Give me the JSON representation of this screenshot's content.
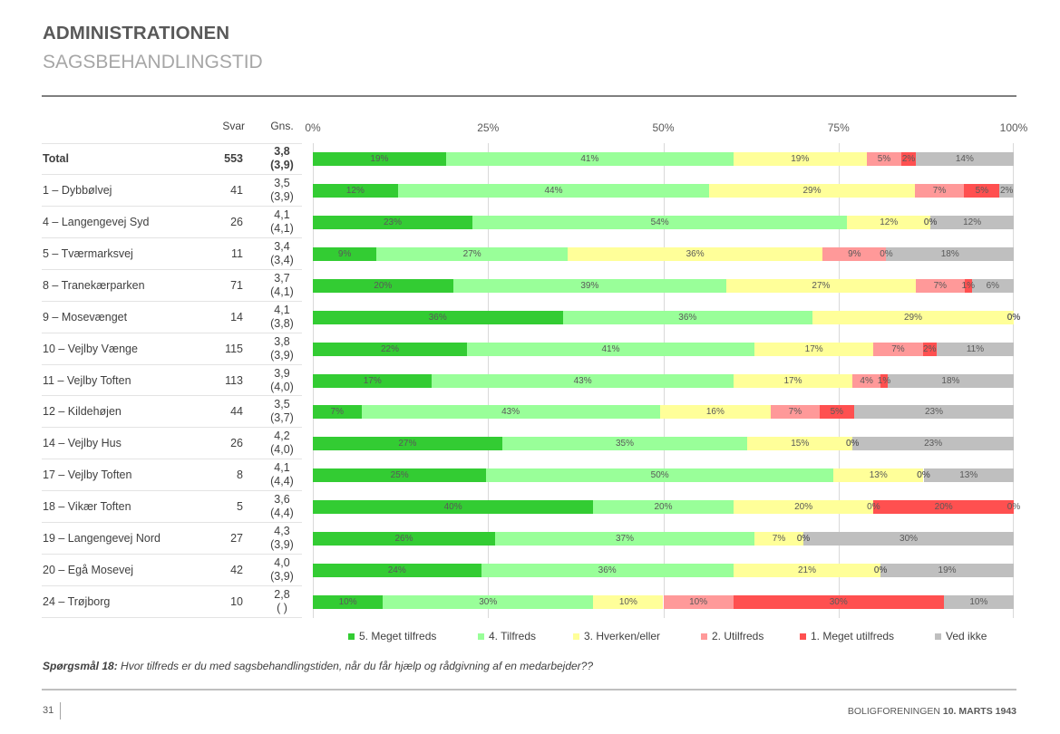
{
  "header": {
    "title": "ADMINISTRATIONEN",
    "subtitle": "SAGSBEHANDLINGSTID"
  },
  "table": {
    "col_svar": "Svar",
    "col_gns": "Gns.",
    "rows": [
      {
        "name": "Total",
        "svar": "553",
        "gns": "3,8",
        "gns_prev": "(3,9)"
      },
      {
        "name": "1 – Dybbølvej",
        "svar": "41",
        "gns": "3,5",
        "gns_prev": "(3,9)"
      },
      {
        "name": "4 – Langengevej Syd",
        "svar": "26",
        "gns": "4,1",
        "gns_prev": "(4,1)"
      },
      {
        "name": "5 – Tværmarksvej",
        "svar": "11",
        "gns": "3,4",
        "gns_prev": "(3,4)"
      },
      {
        "name": "8 – Tranekærparken",
        "svar": "71",
        "gns": "3,7",
        "gns_prev": "(4,1)"
      },
      {
        "name": "9 – Mosevænget",
        "svar": "14",
        "gns": "4,1",
        "gns_prev": "(3,8)"
      },
      {
        "name": "10 – Vejlby Vænge",
        "svar": "115",
        "gns": "3,8",
        "gns_prev": "(3,9)"
      },
      {
        "name": "11 – Vejlby Toften",
        "svar": "113",
        "gns": "3,9",
        "gns_prev": "(4,0)"
      },
      {
        "name": "12 – Kildehøjen",
        "svar": "44",
        "gns": "3,5",
        "gns_prev": "(3,7)"
      },
      {
        "name": "14 – Vejlby Hus",
        "svar": "26",
        "gns": "4,2",
        "gns_prev": "(4,0)"
      },
      {
        "name": "17 – Vejlby Toften",
        "svar": "8",
        "gns": "4,1",
        "gns_prev": "(4,4)"
      },
      {
        "name": "18 – Vikær Toften",
        "svar": "5",
        "gns": "3,6",
        "gns_prev": "(4,4)"
      },
      {
        "name": "19 – Langengevej Nord",
        "svar": "27",
        "gns": "4,3",
        "gns_prev": "(3,9)"
      },
      {
        "name": "20 – Egå Mosevej",
        "svar": "42",
        "gns": "4,0",
        "gns_prev": "(3,9)"
      },
      {
        "name": "24 – Trøjborg",
        "svar": "10",
        "gns": "2,8",
        "gns_prev": "(  )"
      }
    ]
  },
  "chart_data": {
    "type": "bar",
    "orientation": "horizontal",
    "stacking": "percent",
    "title": "",
    "xlabel": "",
    "ylabel": "",
    "xlim": [
      0,
      100
    ],
    "x_tick_values": [
      0,
      25,
      50,
      75,
      100
    ],
    "x_tick_labels": [
      "0%",
      "25%",
      "50%",
      "75%",
      "100%"
    ],
    "grid": true,
    "legend": "bottom",
    "data_labels": true,
    "categories": [
      "Total",
      "1 – Dybbølvej",
      "4 – Langengevej Syd",
      "5 – Tværmarksvej",
      "8 – Tranekærparken",
      "9 – Mosevænget",
      "10 – Vejlby Vænge",
      "11 – Vejlby Toften",
      "12 – Kildehøjen",
      "14 – Vejlby Hus",
      "17 – Vejlby Toften",
      "18 – Vikær Toften",
      "19 – Langengevej Nord",
      "20 – Egå Mosevej",
      "24 – Trøjborg"
    ],
    "series": [
      {
        "name": "5. Meget tilfreds",
        "color": "#33CC33",
        "values": [
          19,
          12,
          23,
          9,
          20,
          36,
          22,
          17,
          7,
          27,
          25,
          40,
          26,
          24,
          10
        ]
      },
      {
        "name": "4. Tilfreds",
        "color": "#99FF99",
        "values": [
          41,
          44,
          54,
          27,
          39,
          36,
          41,
          43,
          43,
          35,
          50,
          20,
          37,
          36,
          30
        ]
      },
      {
        "name": "3. Hverken/eller",
        "color": "#FFFF99",
        "values": [
          19,
          29,
          12,
          36,
          27,
          29,
          17,
          17,
          16,
          15,
          13,
          20,
          7,
          21,
          10
        ]
      },
      {
        "name": "2. Utilfreds",
        "color": "#FF9999",
        "values": [
          5,
          7,
          0,
          9,
          7,
          0,
          7,
          4,
          7,
          0,
          0,
          0,
          0,
          0,
          10
        ]
      },
      {
        "name": "1. Meget utilfreds",
        "color": "#FF5050",
        "values": [
          2,
          5,
          0,
          0,
          1,
          0,
          2,
          1,
          5,
          0,
          0,
          20,
          0,
          0,
          30
        ]
      },
      {
        "name": "Ved ikke",
        "color": "#BFBFBF",
        "values": [
          14,
          2,
          12,
          18,
          6,
          0,
          11,
          18,
          23,
          23,
          13,
          0,
          30,
          19,
          10
        ]
      }
    ]
  },
  "question": {
    "label": "Spørgsmål 18:",
    "text": " Hvor tilfreds er du med sagsbehandlingstiden, når du får hjælp og rådgivning af en medarbejder??"
  },
  "footer": {
    "page_number": "31",
    "org": "BOLIGFORENINGEN ",
    "date": "10. MARTS 1943"
  }
}
